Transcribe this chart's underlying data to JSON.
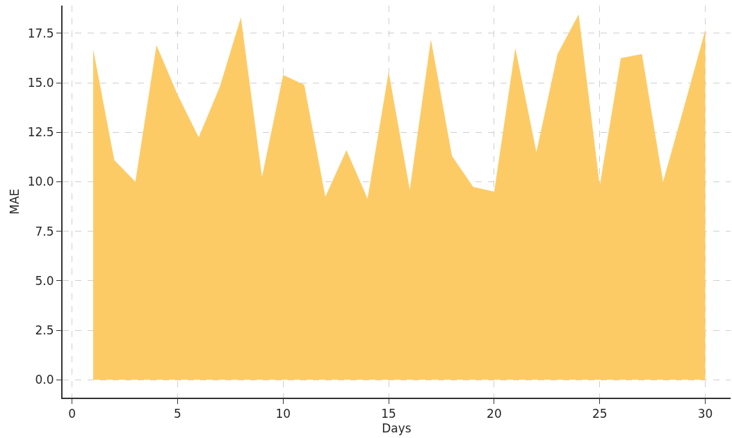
{
  "chart_data": {
    "type": "area",
    "xlabel": "Days",
    "ylabel": "MAE",
    "x": [
      1,
      2,
      3,
      4,
      5,
      6,
      7,
      8,
      9,
      10,
      11,
      12,
      13,
      14,
      15,
      16,
      17,
      18,
      19,
      20,
      21,
      22,
      23,
      24,
      25,
      26,
      27,
      28,
      29,
      30
    ],
    "series": [
      {
        "color": "#fdcb66",
        "values": [
          16.7,
          11.1,
          10.0,
          16.9,
          14.4,
          12.25,
          14.8,
          18.3,
          10.25,
          15.4,
          14.9,
          9.25,
          11.6,
          9.15,
          15.55,
          9.6,
          17.2,
          11.3,
          9.75,
          9.5,
          16.75,
          11.5,
          16.45,
          18.45,
          9.8,
          16.25,
          16.45,
          10.0,
          13.8,
          17.65
        ]
      }
    ],
    "xlim": [
      -0.45,
      31.2
    ],
    "ylim": [
      -0.9,
      18.9
    ],
    "xticks": [
      0,
      5,
      10,
      15,
      20,
      25,
      30
    ],
    "yticks": [
      {
        "value": 0,
        "label": "0.0"
      },
      {
        "value": 2.5,
        "label": "2.5"
      },
      {
        "value": 5,
        "label": "5.0"
      },
      {
        "value": 7.5,
        "label": "7.5"
      },
      {
        "value": 10,
        "label": "10.0"
      },
      {
        "value": 12.5,
        "label": "12.5"
      },
      {
        "value": 15,
        "label": "15.0"
      },
      {
        "value": 17.5,
        "label": "17.5"
      }
    ],
    "grid": true
  }
}
